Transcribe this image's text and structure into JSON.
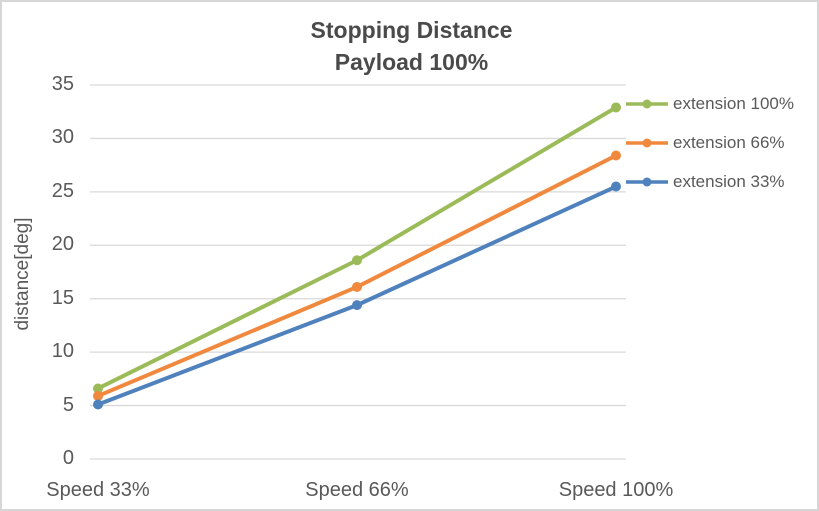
{
  "chart_data": {
    "type": "line",
    "title": "Stopping Distance",
    "subtitle": "Payload 100%",
    "ylabel": "distance[deg]",
    "xlabel": "",
    "categories": [
      "Speed 33%",
      "Speed 66%",
      "Speed 100%"
    ],
    "series": [
      {
        "name": "extension 100%",
        "color": "#9bbb59",
        "values": [
          6.6,
          18.6,
          32.9
        ]
      },
      {
        "name": "extension 66%",
        "color": "#f0883e",
        "values": [
          5.9,
          16.1,
          28.4
        ]
      },
      {
        "name": "extension 33%",
        "color": "#4f81bd",
        "values": [
          5.1,
          14.4,
          25.5
        ]
      }
    ],
    "ylim": [
      0,
      35
    ],
    "yticks": [
      0,
      5,
      10,
      15,
      20,
      25,
      30,
      35
    ],
    "grid": true,
    "grid_color": "#d9d9d9",
    "legend_position": "right",
    "marker": "circle"
  }
}
